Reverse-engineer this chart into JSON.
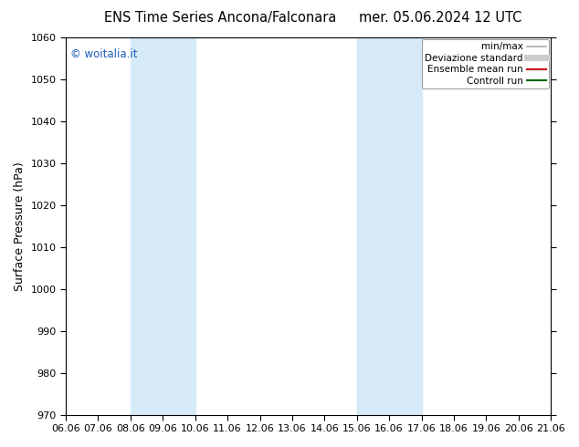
{
  "title_left": "ENS Time Series Ancona/Falconara",
  "title_right": "mer. 05.06.2024 12 UTC",
  "ylabel": "Surface Pressure (hPa)",
  "ylim": [
    970,
    1060
  ],
  "yticks": [
    970,
    980,
    990,
    1000,
    1010,
    1020,
    1030,
    1040,
    1050,
    1060
  ],
  "xtick_labels": [
    "06.06",
    "07.06",
    "08.06",
    "09.06",
    "10.06",
    "11.06",
    "12.06",
    "13.06",
    "14.06",
    "15.06",
    "16.06",
    "17.06",
    "18.06",
    "19.06",
    "20.06",
    "21.06"
  ],
  "shaded_bands": [
    {
      "xstart": 2,
      "xend": 4,
      "color": "#d6eaf8"
    },
    {
      "xstart": 9,
      "xend": 11,
      "color": "#d6eaf8"
    }
  ],
  "watermark": "© woitalia.it",
  "watermark_color": "#1a5aba",
  "legend_items": [
    {
      "label": "min/max",
      "color": "#aaaaaa",
      "lw": 1.2,
      "style": "solid"
    },
    {
      "label": "Deviazione standard",
      "color": "#cccccc",
      "lw": 5,
      "style": "solid"
    },
    {
      "label": "Ensemble mean run",
      "color": "#cc0000",
      "lw": 1.5,
      "style": "solid"
    },
    {
      "label": "Controll run",
      "color": "#006600",
      "lw": 1.5,
      "style": "solid"
    }
  ],
  "bg_color": "#ffffff",
  "plot_bg_color": "#ffffff",
  "border_color": "#000000",
  "title_fontsize": 10.5,
  "tick_fontsize": 8,
  "ylabel_fontsize": 9,
  "figsize": [
    6.34,
    4.9
  ],
  "dpi": 100
}
